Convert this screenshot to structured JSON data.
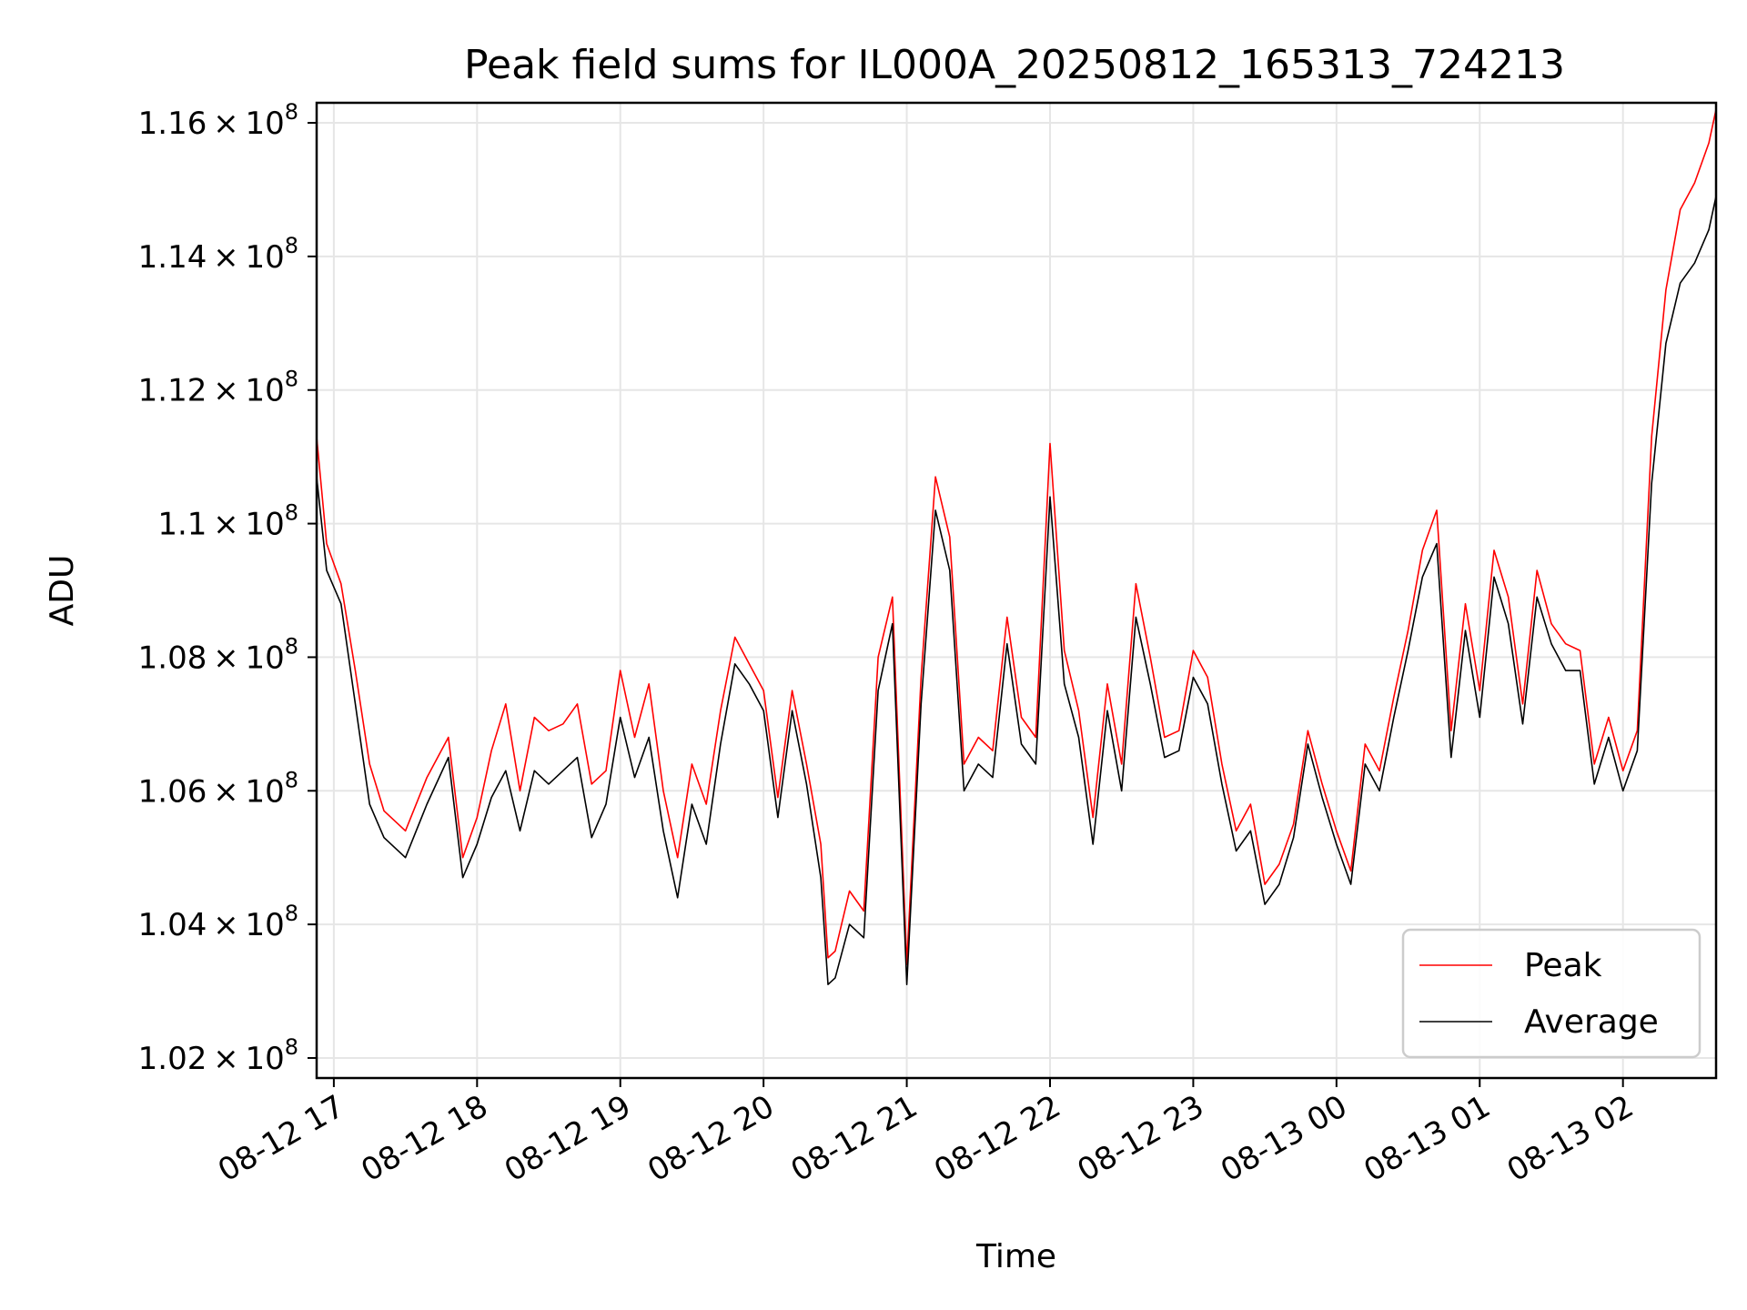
{
  "chart_data": {
    "type": "line",
    "title": "Peak field sums for IL000A_20250812_165313_724213",
    "xlabel": "Time",
    "ylabel": "ADU",
    "x_start": "2025-08-12 16:53",
    "x_end": "2025-08-13 02:39",
    "xlim_hours": [
      16.88,
      26.65
    ],
    "ylim": [
      101700000,
      116300000
    ],
    "ytick_values": [
      102000000,
      104000000,
      106000000,
      108000000,
      110000000,
      112000000,
      114000000,
      116000000
    ],
    "ytick_labels": [
      {
        "mant": "1.02",
        "exp": "8"
      },
      {
        "mant": "1.04",
        "exp": "8"
      },
      {
        "mant": "1.06",
        "exp": "8"
      },
      {
        "mant": "1.08",
        "exp": "8"
      },
      {
        "mant": "1.1",
        "exp": "8"
      },
      {
        "mant": "1.12",
        "exp": "8"
      },
      {
        "mant": "1.14",
        "exp": "8"
      },
      {
        "mant": "1.16",
        "exp": "8"
      }
    ],
    "xtick_hours": [
      17,
      18,
      19,
      20,
      21,
      22,
      23,
      24,
      25,
      26
    ],
    "xtick_labels": [
      "08-12 17",
      "08-12 18",
      "08-12 19",
      "08-12 20",
      "08-12 21",
      "08-12 22",
      "08-12 23",
      "08-13 00",
      "08-13 01",
      "08-13 02"
    ],
    "grid": true,
    "legend_position": "bottom-right",
    "series": [
      {
        "name": "Peak",
        "color": "#ff0000",
        "x": [
          16.88,
          16.95,
          17.05,
          17.15,
          17.25,
          17.35,
          17.5,
          17.65,
          17.8,
          17.9,
          18.0,
          18.1,
          18.2,
          18.3,
          18.4,
          18.5,
          18.6,
          18.7,
          18.8,
          18.9,
          19.0,
          19.1,
          19.2,
          19.3,
          19.4,
          19.5,
          19.6,
          19.7,
          19.8,
          19.9,
          20.0,
          20.1,
          20.2,
          20.3,
          20.4,
          20.45,
          20.5,
          20.6,
          20.7,
          20.8,
          20.9,
          21.0,
          21.1,
          21.2,
          21.3,
          21.4,
          21.5,
          21.6,
          21.7,
          21.8,
          21.9,
          22.0,
          22.1,
          22.2,
          22.3,
          22.4,
          22.5,
          22.6,
          22.7,
          22.8,
          22.9,
          23.0,
          23.1,
          23.2,
          23.3,
          23.4,
          23.5,
          23.6,
          23.7,
          23.8,
          23.9,
          24.0,
          24.1,
          24.2,
          24.3,
          24.4,
          24.5,
          24.6,
          24.7,
          24.8,
          24.9,
          25.0,
          25.1,
          25.2,
          25.3,
          25.4,
          25.5,
          25.6,
          25.7,
          25.8,
          25.9,
          26.0,
          26.1,
          26.2,
          26.3,
          26.4,
          26.5,
          26.6,
          26.65
        ],
        "y": [
          111300000,
          109700000,
          109100000,
          107800000,
          106400000,
          105700000,
          105400000,
          106200000,
          106800000,
          105000000,
          105600000,
          106600000,
          107300000,
          106000000,
          107100000,
          106900000,
          107000000,
          107300000,
          106100000,
          106300000,
          107800000,
          106800000,
          107600000,
          106000000,
          105000000,
          106400000,
          105800000,
          107200000,
          108300000,
          107900000,
          107500000,
          105900000,
          107500000,
          106400000,
          105200000,
          103500000,
          103600000,
          104500000,
          104200000,
          108000000,
          108900000,
          103400000,
          107700000,
          110700000,
          109800000,
          106400000,
          106800000,
          106600000,
          108600000,
          107100000,
          106800000,
          111200000,
          108100000,
          107200000,
          105600000,
          107600000,
          106400000,
          109100000,
          108000000,
          106800000,
          106900000,
          108100000,
          107700000,
          106400000,
          105400000,
          105800000,
          104600000,
          104900000,
          105500000,
          106900000,
          106100000,
          105400000,
          104800000,
          106700000,
          106300000,
          107400000,
          108400000,
          109600000,
          110200000,
          106900000,
          108800000,
          107500000,
          109600000,
          108900000,
          107300000,
          109300000,
          108500000,
          108200000,
          108100000,
          106400000,
          107100000,
          106300000,
          106900000,
          111300000,
          113500000,
          114700000,
          115100000,
          115700000,
          116200000
        ]
      },
      {
        "name": "Average",
        "color": "#000000",
        "x": [
          16.88,
          16.95,
          17.05,
          17.15,
          17.25,
          17.35,
          17.5,
          17.65,
          17.8,
          17.9,
          18.0,
          18.1,
          18.2,
          18.3,
          18.4,
          18.5,
          18.6,
          18.7,
          18.8,
          18.9,
          19.0,
          19.1,
          19.2,
          19.3,
          19.4,
          19.5,
          19.6,
          19.7,
          19.8,
          19.9,
          20.0,
          20.1,
          20.2,
          20.3,
          20.4,
          20.45,
          20.5,
          20.6,
          20.7,
          20.8,
          20.9,
          21.0,
          21.1,
          21.2,
          21.3,
          21.4,
          21.5,
          21.6,
          21.7,
          21.8,
          21.9,
          22.0,
          22.1,
          22.2,
          22.3,
          22.4,
          22.5,
          22.6,
          22.7,
          22.8,
          22.9,
          23.0,
          23.1,
          23.2,
          23.3,
          23.4,
          23.5,
          23.6,
          23.7,
          23.8,
          23.9,
          24.0,
          24.1,
          24.2,
          24.3,
          24.4,
          24.5,
          24.6,
          24.7,
          24.8,
          24.9,
          25.0,
          25.1,
          25.2,
          25.3,
          25.4,
          25.5,
          25.6,
          25.7,
          25.8,
          25.9,
          26.0,
          26.1,
          26.2,
          26.3,
          26.4,
          26.5,
          26.6,
          26.65
        ],
        "y": [
          110700000,
          109300000,
          108800000,
          107300000,
          105800000,
          105300000,
          105000000,
          105800000,
          106500000,
          104700000,
          105200000,
          105900000,
          106300000,
          105400000,
          106300000,
          106100000,
          106300000,
          106500000,
          105300000,
          105800000,
          107100000,
          106200000,
          106800000,
          105400000,
          104400000,
          105800000,
          105200000,
          106700000,
          107900000,
          107600000,
          107200000,
          105600000,
          107200000,
          106100000,
          104700000,
          103100000,
          103200000,
          104000000,
          103800000,
          107500000,
          108500000,
          103100000,
          107300000,
          110200000,
          109300000,
          106000000,
          106400000,
          106200000,
          108200000,
          106700000,
          106400000,
          110400000,
          107600000,
          106800000,
          105200000,
          107200000,
          106000000,
          108600000,
          107600000,
          106500000,
          106600000,
          107700000,
          107300000,
          106100000,
          105100000,
          105400000,
          104300000,
          104600000,
          105300000,
          106700000,
          105900000,
          105200000,
          104600000,
          106400000,
          106000000,
          107100000,
          108100000,
          109200000,
          109700000,
          106500000,
          108400000,
          107100000,
          109200000,
          108500000,
          107000000,
          108900000,
          108200000,
          107800000,
          107800000,
          106100000,
          106800000,
          106000000,
          106600000,
          110600000,
          112700000,
          113600000,
          113900000,
          114400000,
          114900000
        ]
      }
    ]
  }
}
